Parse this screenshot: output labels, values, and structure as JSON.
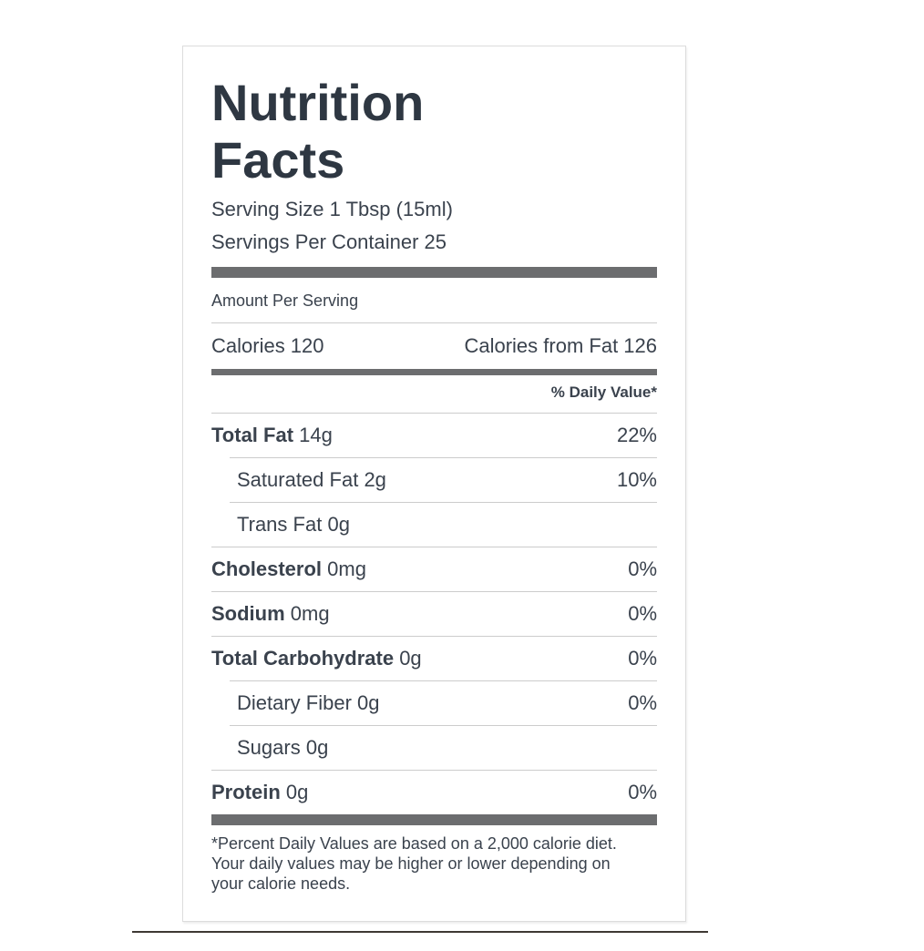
{
  "label": {
    "title_line1": "Nutrition",
    "title_line2": "Facts",
    "serving_size": "Serving Size 1 Tbsp (15ml)",
    "servings_per_container": "Servings Per Container 25",
    "amount_per_serving": "Amount Per Serving",
    "calories": "Calories 120",
    "calories_from_fat": "Calories from Fat 126",
    "daily_value_header": "% Daily Value*",
    "rows": [
      {
        "name": "Total Fat",
        "amount": "14g",
        "dv": "22%"
      },
      {
        "name": "Saturated Fat",
        "amount": "2g",
        "dv": "10%"
      },
      {
        "name": "Trans Fat",
        "amount": "0g",
        "dv": ""
      },
      {
        "name": "Cholesterol",
        "amount": "0mg",
        "dv": "0%"
      },
      {
        "name": "Sodium",
        "amount": "0mg",
        "dv": "0%"
      },
      {
        "name": "Total Carbohydrate",
        "amount": "0g",
        "dv": "0%"
      },
      {
        "name": "Dietary Fiber",
        "amount": "0g",
        "dv": "0%"
      },
      {
        "name": "Sugars",
        "amount": "0g",
        "dv": ""
      },
      {
        "name": "Protein",
        "amount": "0g",
        "dv": "0%"
      }
    ],
    "footnote": "*Percent Daily Values are based on a 2,000 calorie diet. Your daily values may be higher or lower depending on your calorie needs.",
    "colors": {
      "text": "#3a424d",
      "title": "#2e3742",
      "separator_bar": "#6c6d6f",
      "divider": "#cccccc",
      "box_border": "#dcdcdc",
      "bottom_rule": "#3e3933"
    }
  }
}
